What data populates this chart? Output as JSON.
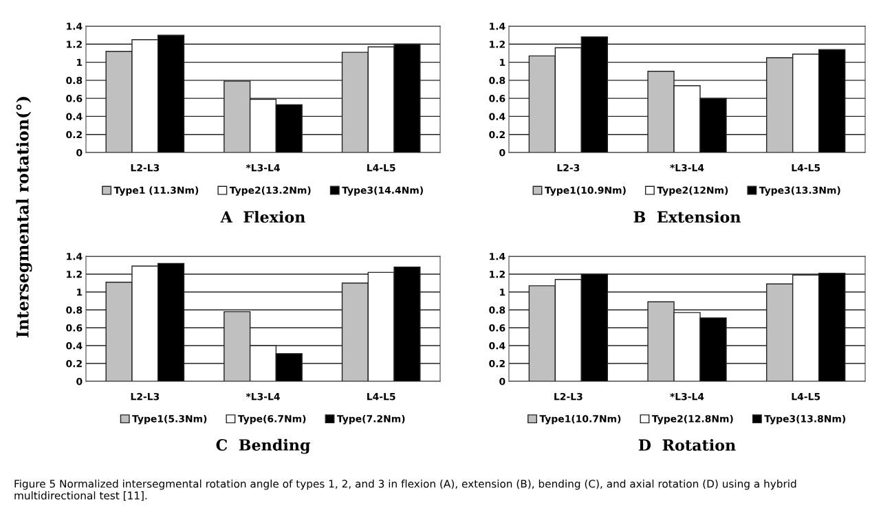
{
  "chart_data": [
    {
      "type": "bar",
      "title": "A  Flexion",
      "ylabel": "Intersegmental rotation(°)",
      "categories": [
        "L2-L3",
        "*L3-L4",
        "L4-L5"
      ],
      "ylim": [
        0,
        1.4
      ],
      "yticks": [
        0,
        0.2,
        0.4,
        0.6,
        0.8,
        1,
        1.2,
        1.4
      ],
      "grid": "y",
      "legend": "bottom",
      "series": [
        {
          "name": "Type1 (11.3Nm)",
          "color": "#c0c0c0",
          "values": [
            1.12,
            0.79,
            1.11
          ]
        },
        {
          "name": "Type2(13.2Nm)",
          "color": "#ffffff",
          "values": [
            1.25,
            0.59,
            1.17
          ]
        },
        {
          "name": "Type3(14.4Nm)",
          "color": "#000000",
          "values": [
            1.3,
            0.53,
            1.2
          ]
        }
      ]
    },
    {
      "type": "bar",
      "title": "B  Extension",
      "categories": [
        "L2-3",
        "*L3-L4",
        "L4-L5"
      ],
      "ylim": [
        0,
        1.4
      ],
      "yticks": [
        0,
        0.2,
        0.4,
        0.6,
        0.8,
        1,
        1.2,
        1.4
      ],
      "grid": "y",
      "legend": "bottom",
      "series": [
        {
          "name": "Type1(10.9Nm)",
          "color": "#c0c0c0",
          "values": [
            1.07,
            0.9,
            1.05
          ]
        },
        {
          "name": "Type2(12Nm)",
          "color": "#ffffff",
          "values": [
            1.16,
            0.74,
            1.09
          ]
        },
        {
          "name": "Type3(13.3Nm)",
          "color": "#000000",
          "values": [
            1.28,
            0.6,
            1.14
          ]
        }
      ]
    },
    {
      "type": "bar",
      "title": "C  Bending",
      "categories": [
        "L2-L3",
        "*L3-L4",
        "L4-L5"
      ],
      "ylim": [
        0,
        1.4
      ],
      "yticks": [
        0,
        0.2,
        0.4,
        0.6,
        0.8,
        1,
        1.2,
        1.4
      ],
      "grid": "y",
      "legend": "bottom",
      "series": [
        {
          "name": "Type1(5.3Nm)",
          "color": "#c0c0c0",
          "values": [
            1.11,
            0.78,
            1.1
          ]
        },
        {
          "name": "Type(6.7Nm)",
          "color": "#ffffff",
          "values": [
            1.29,
            0.4,
            1.22
          ]
        },
        {
          "name": "Type(7.2Nm)",
          "color": "#000000",
          "values": [
            1.32,
            0.31,
            1.28
          ]
        }
      ]
    },
    {
      "type": "bar",
      "title": "D  Rotation",
      "categories": [
        "L2-L3",
        "*L3-L4",
        "L4-L5"
      ],
      "ylim": [
        0,
        1.4
      ],
      "yticks": [
        0,
        0.2,
        0.4,
        0.6,
        0.8,
        1,
        1.2,
        1.4
      ],
      "grid": "y",
      "legend": "bottom",
      "annotations": [
        "Figure 5 Normalized intersegmental rotation angle of types 1, 2, and 3 in flexion (A), extension (B), bending (C), and axial rotation (D) using a hybrid multidirectional test [11]."
      ],
      "series": [
        {
          "name": "Type1(10.7Nm)",
          "color": "#c0c0c0",
          "values": [
            1.07,
            0.89,
            1.09
          ]
        },
        {
          "name": "Type2(12.8Nm)",
          "color": "#ffffff",
          "values": [
            1.14,
            0.77,
            1.19
          ]
        },
        {
          "name": "Type3(13.8Nm)",
          "color": "#000000",
          "values": [
            1.2,
            0.71,
            1.21
          ]
        }
      ]
    }
  ]
}
